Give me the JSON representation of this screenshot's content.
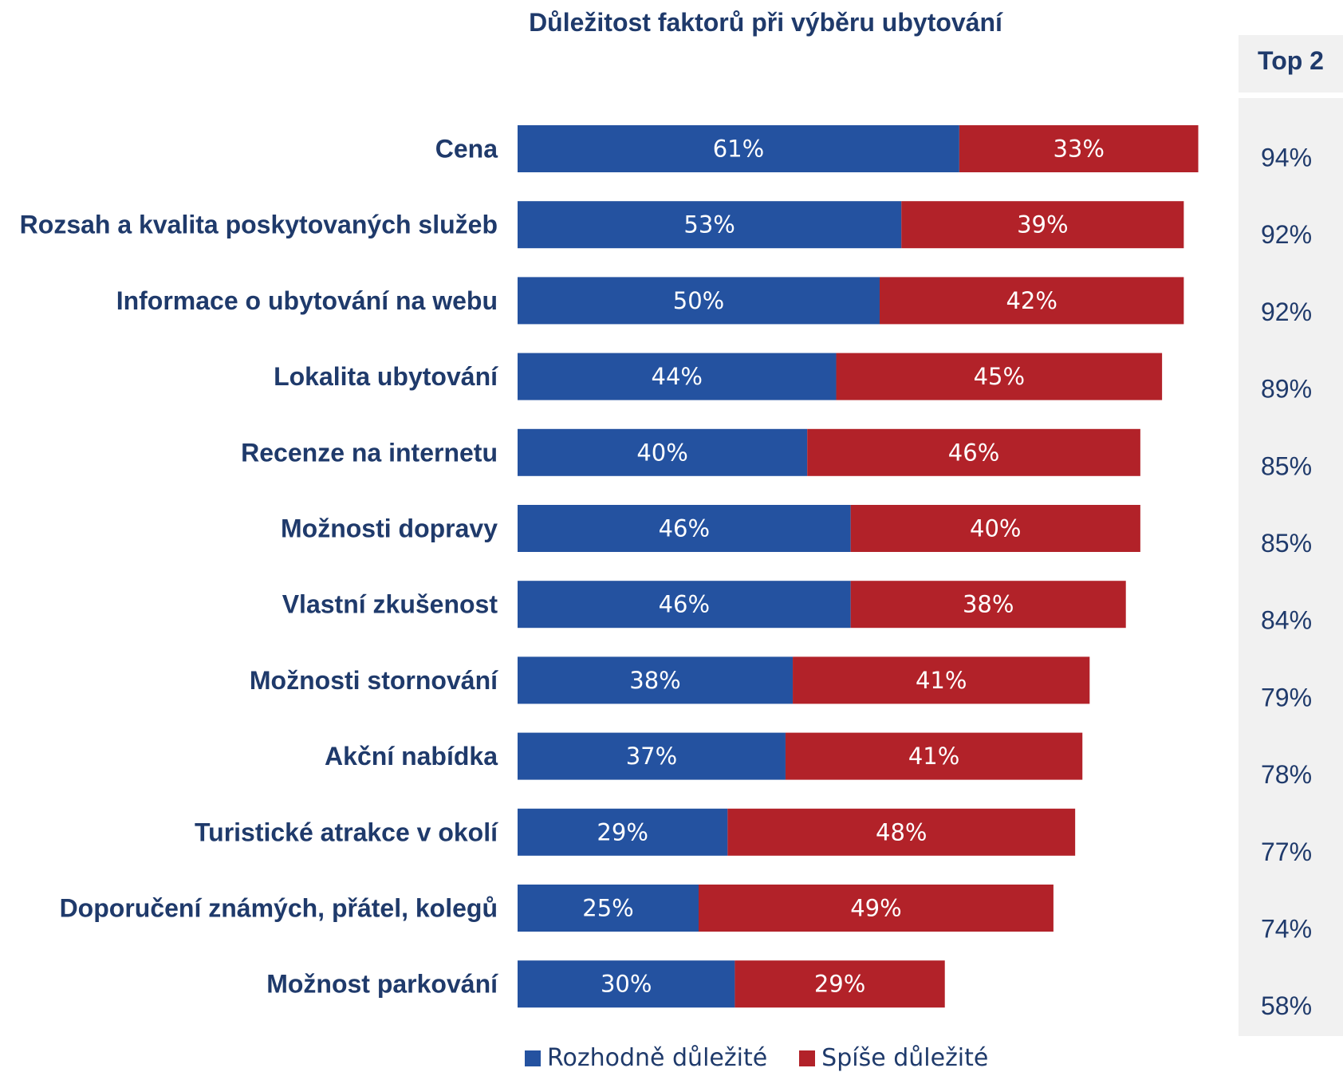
{
  "colors": {
    "series1": "#2452a0",
    "series2": "#b22229",
    "text": "#1f3a6b",
    "top2_bg": "#f1f1f1"
  },
  "top2_header": "Top 2",
  "chart_data": {
    "type": "bar",
    "orientation": "horizontal",
    "stacked": true,
    "title": "Důležitost faktorů při výběru ubytování",
    "categories": [
      "Cena",
      "Rozsah a kvalita poskytovaných služeb",
      "Informace o ubytování na webu",
      "Lokalita ubytování",
      "Recenze na internetu",
      "Možnosti dopravy",
      "Vlastní zkušenost",
      "Možnosti stornování",
      "Akční nabídka",
      "Turistické atrakce v okolí",
      "Doporučení známých, přátel, kolegů",
      "Možnost parkování"
    ],
    "series": [
      {
        "name": "Rozhodně důležité",
        "values": [
          61,
          53,
          50,
          44,
          40,
          46,
          46,
          38,
          37,
          29,
          25,
          30
        ],
        "labels": [
          "61%",
          "53%",
          "50%",
          "44%",
          "40%",
          "46%",
          "46%",
          "38%",
          "37%",
          "29%",
          "25%",
          "30%"
        ]
      },
      {
        "name": "Spíše důležité",
        "values": [
          33,
          39,
          42,
          45,
          46,
          40,
          38,
          41,
          41,
          48,
          49,
          29
        ],
        "labels": [
          "33%",
          "39%",
          "42%",
          "45%",
          "46%",
          "40%",
          "38%",
          "41%",
          "41%",
          "48%",
          "49%",
          "29%"
        ]
      }
    ],
    "top2": [
      "94%",
      "92%",
      "92%",
      "89%",
      "85%",
      "85%",
      "84%",
      "79%",
      "78%",
      "77%",
      "74%",
      "58%"
    ],
    "unit": "%",
    "legend_position": "bottom",
    "grid": false
  }
}
